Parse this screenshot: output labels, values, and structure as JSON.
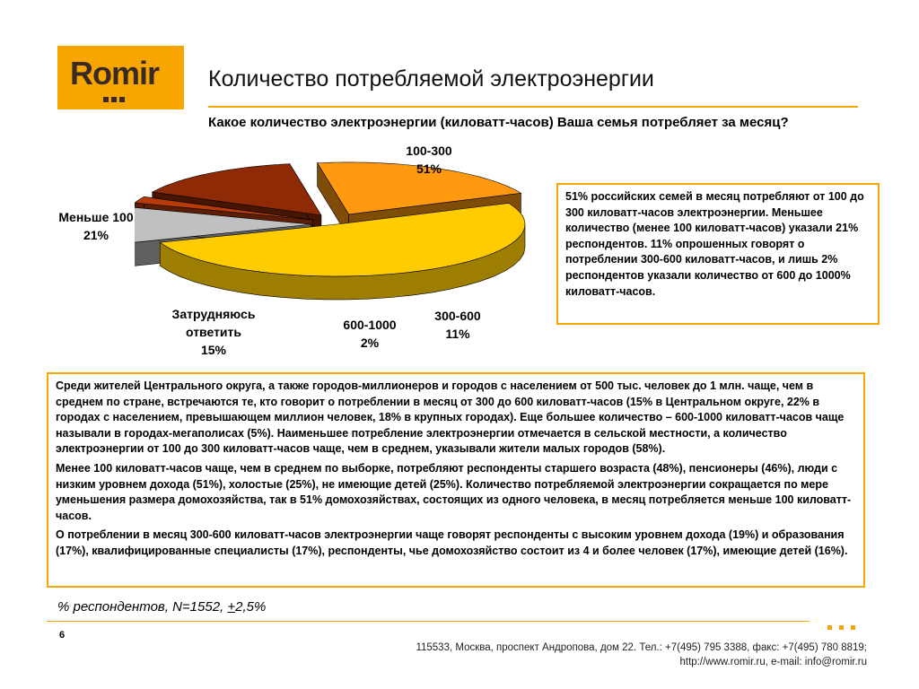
{
  "logo": {
    "text": "Romir"
  },
  "title": "Количество потребляемой электроэнергии",
  "question": "Какое количество электроэнергии (киловатт-часов) Ваша семья потребляет за месяц?",
  "chart_data": {
    "type": "pie",
    "categories": [
      "100-300",
      "300-600",
      "600-1000",
      "Затрудняюсь ответить",
      "Меньше 100"
    ],
    "values": [
      51,
      11,
      2,
      15,
      21
    ],
    "labels": [
      "100-300",
      "300-600",
      "600-1000",
      "Затрудняюсь ответить",
      "Меньше 100"
    ],
    "percent_labels": [
      "51%",
      "11%",
      "2%",
      "15%",
      "21%"
    ],
    "colors": [
      "#ffcc00",
      "#c0c0c0",
      "#b83c0a",
      "#8e2a05",
      "#ff9a10"
    ],
    "exploded": true
  },
  "pie_labels": {
    "l100_300": {
      "name": "100-300",
      "pct": "51%"
    },
    "l300_600": {
      "name": "300-600",
      "pct": "11%"
    },
    "l600_1000": {
      "name": "600-1000",
      "pct": "2%"
    },
    "ldk": {
      "line1": "Затрудняюсь",
      "line2": "ответить",
      "pct": "15%"
    },
    "llt100": {
      "name": "Меньше 100",
      "pct": "21%"
    }
  },
  "side_text": "51% российских семей в месяц потребляют от 100 до 300 киловатт-часов электроэнергии. Меньшее количество (менее 100 киловатт-часов) указали 21% респондентов. 11% опрошенных говорят о потреблении 300-600 киловатт-часов, и лишь 2% респондентов указали количество от 600 до 1000% киловатт-часов.",
  "main_paragraphs": [
    "Среди жителей Центрального округа, а также городов-миллионеров и городов с населением от 500 тыс. человек до 1 млн. чаще, чем в среднем по стране, встречаются те, кто говорит о потреблении в месяц от 300 до 600 киловатт-часов (15% в Центральном округе, 22% в городах с населением, превышающем миллион человек, 18% в крупных городах). Еще большее количество – 600-1000 киловатт-часов чаще называли в городах-мегаполисах (5%). Наименьшее потребление электроэнергии отмечается в сельской местности, а количество электроэнергии от 100 до 300 киловатт-часов чаще, чем в среднем, указывали жители малых городов (58%).",
    "Менее 100 киловатт-часов чаще, чем в среднем по выборке, потребляют респонденты старшего возраста (48%), пенсионеры (46%), люди с низким уровнем дохода (51%), холостые (25%), не имеющие детей (25%). Количество потребляемой электроэнергии сокращается по мере уменьшения размера домохозяйства, так в 51% домохозяйствах, состоящих из одного человека, в месяц потребляется меньше 100 киловатт-часов.",
    "О потреблении в месяц 300-600 киловатт-часов электроэнергии чаще говорят респонденты с высоким уровнем дохода (19%) и образования (17%), квалифицированные специалисты (17%),  респонденты, чье домохозяйство состоит из 4 и более человек (17%), имеющие детей (16%)."
  ],
  "note": {
    "before": "% респондентов, N=1552, ",
    "pm": "+",
    "after": "2,5%"
  },
  "page_number": "6",
  "footer": {
    "line1": "115533, Москва, проспект Андропова, дом 22.   Тел.: +7(495) 795 3388, факс: +7(495) 780 8819;",
    "line2": "http://www.romir.ru, e-mail: info@romir.ru"
  },
  "colors": {
    "accent": "#f7a600"
  }
}
